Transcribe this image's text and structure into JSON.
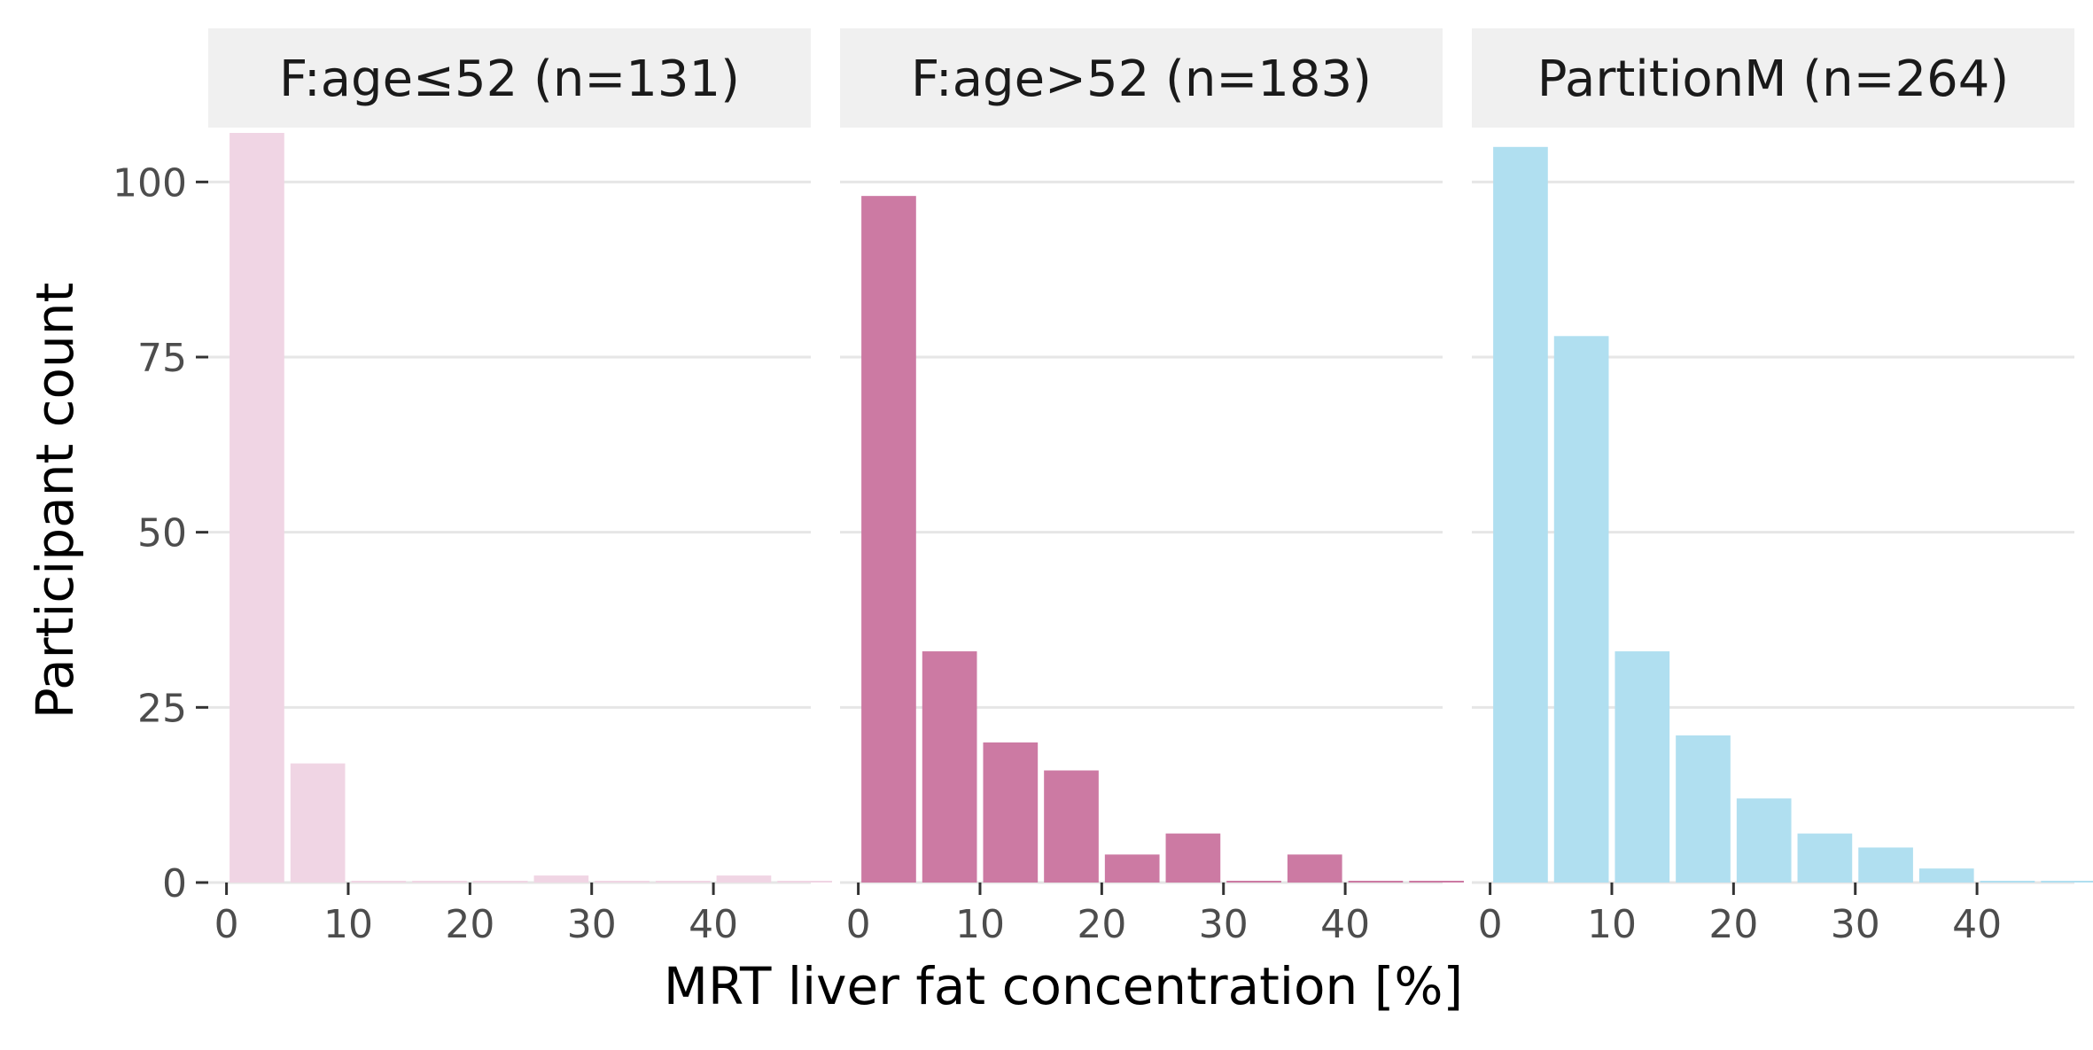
{
  "chart_data": {
    "type": "bar",
    "xlabel": "MRT liver fat concentration [%]",
    "ylabel": "Participant count",
    "xlim": [
      -1.5,
      48
    ],
    "ylim": [
      0,
      107
    ],
    "x_ticks": [
      0,
      10,
      20,
      30,
      40
    ],
    "y_ticks": [
      0,
      25,
      50,
      75,
      100
    ],
    "bin_width": 5,
    "grid": "horizontal",
    "legend": "none",
    "panels": [
      {
        "label": "F:age≤52 (n=131)",
        "color": "#f0d5e4",
        "bin_starts": [
          0,
          5,
          10,
          15,
          20,
          25,
          30,
          35,
          40,
          45
        ],
        "values": [
          107,
          17,
          0,
          0,
          0,
          1,
          0,
          0,
          1,
          0
        ]
      },
      {
        "label": "F:age>52 (n=183)",
        "color": "#cc7aa3",
        "bin_starts": [
          0,
          5,
          10,
          15,
          20,
          25,
          30,
          35,
          40,
          45
        ],
        "values": [
          98,
          33,
          20,
          16,
          4,
          7,
          0,
          4,
          0,
          0
        ]
      },
      {
        "label": "PartitionM (n=264)",
        "color": "#b0dff0",
        "bin_starts": [
          0,
          5,
          10,
          15,
          20,
          25,
          30,
          35,
          40,
          45
        ],
        "values": [
          105,
          78,
          33,
          21,
          12,
          7,
          5,
          2,
          0,
          0
        ]
      }
    ]
  }
}
